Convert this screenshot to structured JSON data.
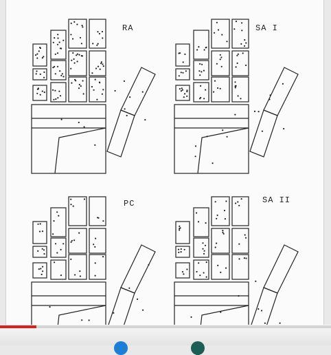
{
  "figure": {
    "panels": [
      {
        "label": "RA"
      },
      {
        "label": "SA I"
      },
      {
        "label": "PC"
      },
      {
        "label": "SA II"
      }
    ]
  },
  "player": {
    "progress": 0.11,
    "accent_color": "#e21b1b"
  }
}
